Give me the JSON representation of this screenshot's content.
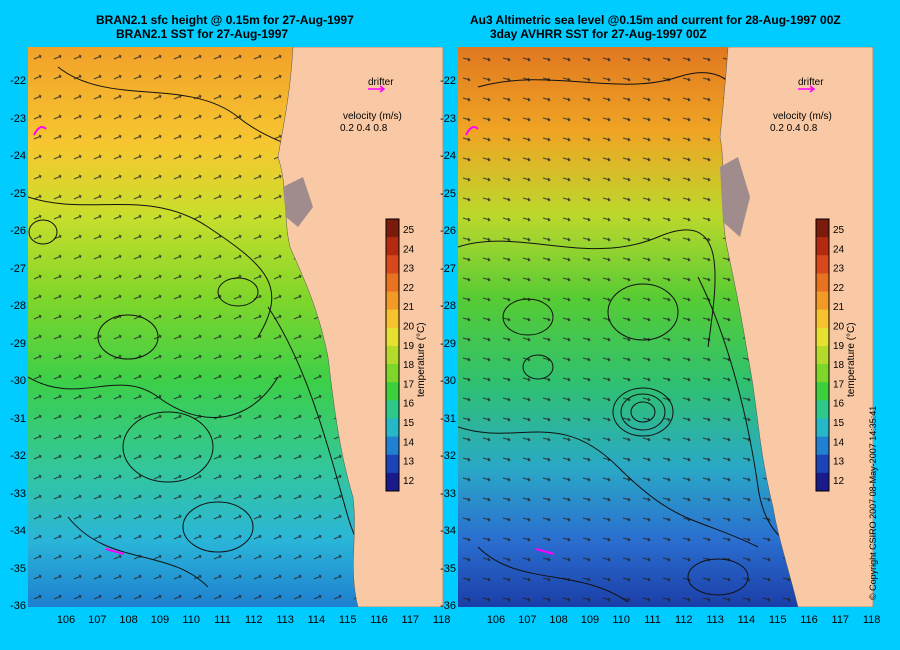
{
  "left_panel": {
    "title_line1": "BRAN2.1 sfc height @ 0.15m for 27-Aug-1997",
    "title_line2": "BRAN2.1 SST for 27-Aug-1997",
    "drifter_label": "drifter",
    "velocity_label": "velocity (m/s)",
    "velocity_scale": "0.2 0.4 0.8",
    "colorbar_label": "temperature (°C)"
  },
  "right_panel": {
    "title_line1": "Au3 Altimetric sea level  @0.15m and current for 28-Aug-1997 00Z",
    "title_line2": "3day AVHRR SST for 27-Aug-1997 00Z",
    "drifter_label": "drifter",
    "velocity_label": "velocity (m/s)",
    "velocity_scale": "0.2 0.4 0.8",
    "colorbar_label": "temperature (°C)"
  },
  "y_ticks": [
    "-22",
    "-23",
    "-24",
    "-25",
    "-26",
    "-27",
    "-28",
    "-29",
    "-30",
    "-31",
    "-32",
    "-33",
    "-34",
    "-35",
    "-36"
  ],
  "x_ticks": [
    "106",
    "107",
    "108",
    "109",
    "110",
    "111",
    "112",
    "113",
    "114",
    "115",
    "116",
    "117",
    "118"
  ],
  "colorbar_ticks": [
    "25",
    "24",
    "23",
    "22",
    "21",
    "20",
    "19",
    "18",
    "17",
    "16",
    "15",
    "14",
    "13",
    "12"
  ],
  "copyright": "© Copyright CSIRO 2007  08-May-2007 14:35:41",
  "colors": {
    "background": "#00ccff",
    "land": "#f9c9a5",
    "warm": "#f5a623",
    "mid": "#6ed82a",
    "cool": "#1fb8c4",
    "drifter": "#ff00ff"
  }
}
